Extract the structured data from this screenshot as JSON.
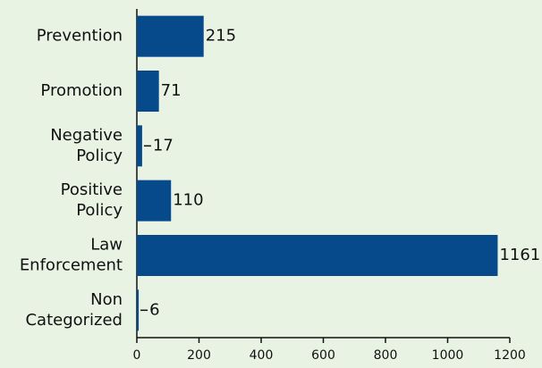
{
  "chart_data": {
    "type": "barh",
    "categories": [
      "Prevention",
      "Promotion",
      "Negative Policy",
      "Positive Policy",
      "Law Enforcement",
      "Non Categorized"
    ],
    "values": [
      215,
      71,
      17,
      110,
      1161,
      6
    ],
    "color": "#074a8c",
    "xlim": [
      0,
      1200
    ],
    "xticks": [
      0,
      200,
      400,
      600,
      800,
      1000,
      1200
    ]
  }
}
